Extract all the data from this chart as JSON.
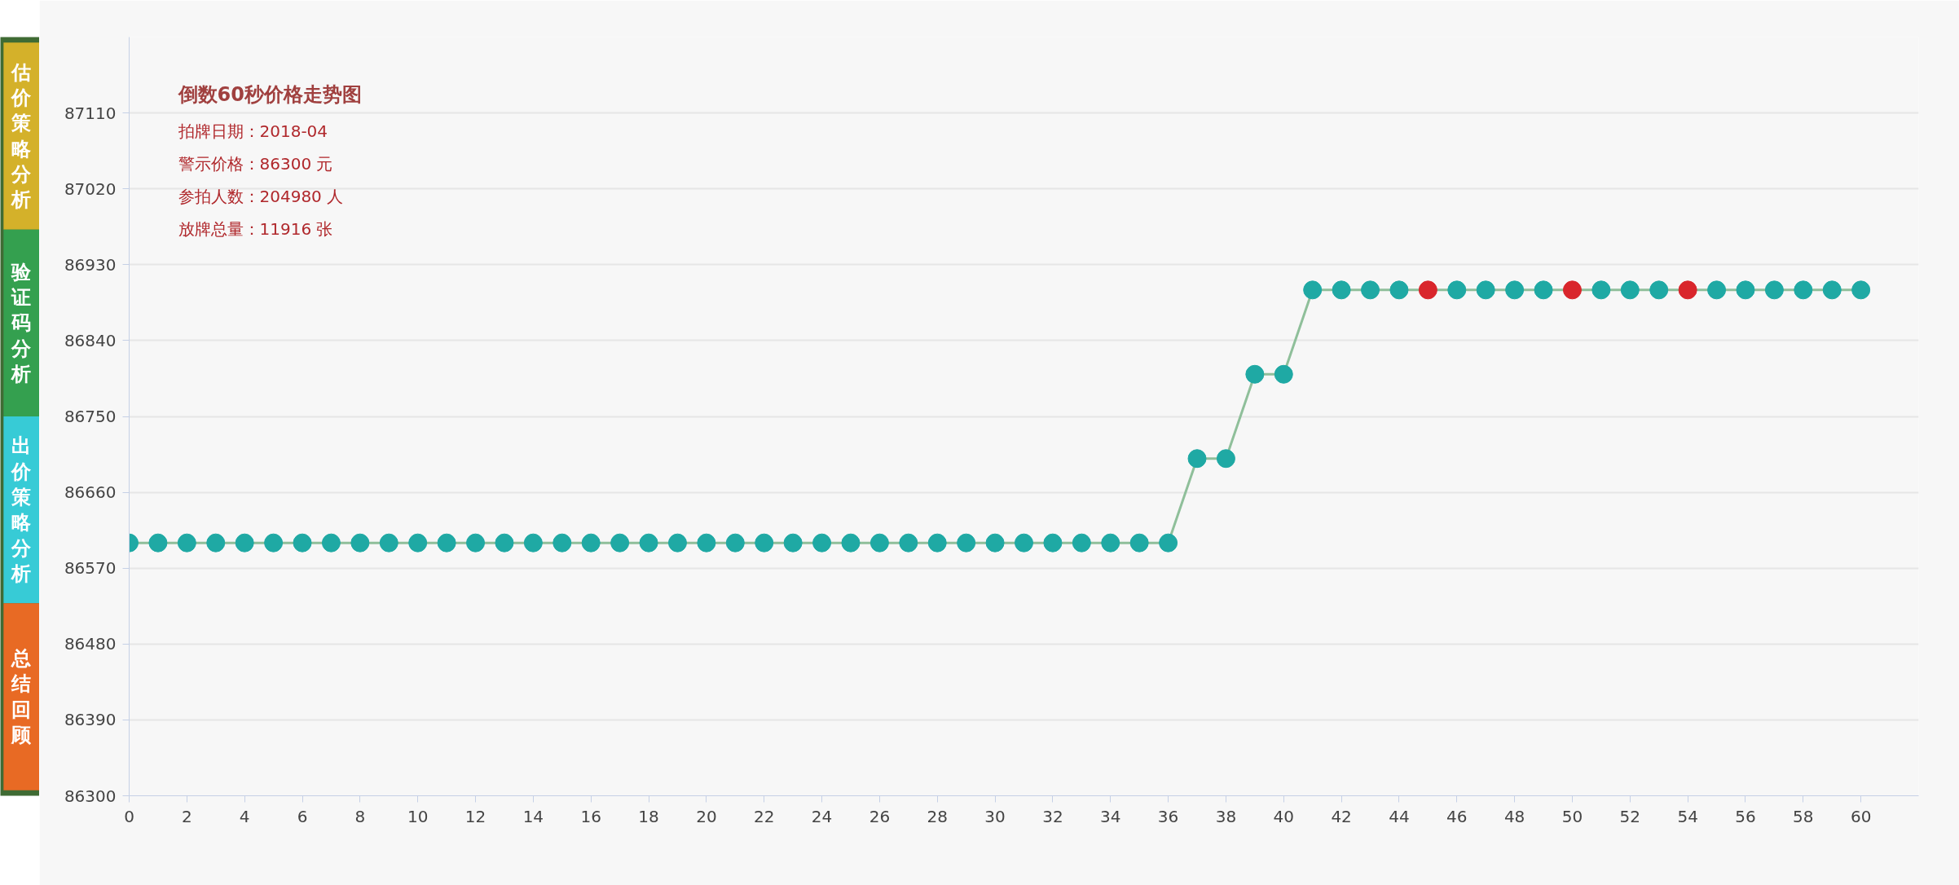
{
  "chart_data": {
    "type": "line",
    "title": "倒数60秒价格走势图",
    "annotations": [
      "拍牌日期：2018-04",
      "警示价格：86300 元",
      "参拍人数：204980 人",
      "放牌总量：11916 张",
      "估价策略分析",
      "验证码分析",
      "出价策略分析",
      "总结回顾"
    ],
    "x": [
      0,
      1,
      2,
      3,
      4,
      5,
      6,
      7,
      8,
      9,
      10,
      11,
      12,
      13,
      14,
      15,
      16,
      17,
      18,
      19,
      20,
      21,
      22,
      23,
      24,
      25,
      26,
      27,
      28,
      29,
      30,
      31,
      32,
      33,
      34,
      35,
      36,
      37,
      38,
      39,
      40,
      41,
      42,
      43,
      44,
      45,
      46,
      47,
      48,
      49,
      50,
      51,
      52,
      53,
      54,
      55,
      56,
      57,
      58,
      59,
      60
    ],
    "series": [
      {
        "color": "#8fbf9a",
        "colors": [
          "#1fa9a4",
          "#1fa9a4",
          "#1fa9a4",
          "#1fa9a4",
          "#1fa9a4",
          "#1fa9a4",
          "#1fa9a4",
          "#1fa9a4",
          "#1fa9a4",
          "#1fa9a4",
          "#1fa9a4",
          "#1fa9a4",
          "#1fa9a4",
          "#1fa9a4",
          "#1fa9a4",
          "#1fa9a4",
          "#1fa9a4",
          "#1fa9a4",
          "#1fa9a4",
          "#1fa9a4",
          "#1fa9a4",
          "#1fa9a4",
          "#1fa9a4",
          "#1fa9a4",
          "#1fa9a4",
          "#1fa9a4",
          "#1fa9a4",
          "#1fa9a4",
          "#1fa9a4",
          "#1fa9a4",
          "#1fa9a4",
          "#1fa9a4",
          "#1fa9a4",
          "#1fa9a4",
          "#1fa9a4",
          "#1fa9a4",
          "#1fa9a4",
          "#1fa9a4",
          "#1fa9a4",
          "#1fa9a4",
          "#1fa9a4",
          "#1fa9a4",
          "#1fa9a4",
          "#1fa9a4",
          "#1fa9a4",
          "#d9262c",
          "#1fa9a4",
          "#1fa9a4",
          "#1fa9a4",
          "#1fa9a4",
          "#d9262c",
          "#1fa9a4",
          "#1fa9a4",
          "#1fa9a4",
          "#d9262c",
          "#1fa9a4",
          "#1fa9a4",
          "#1fa9a4",
          "#1fa9a4",
          "#1fa9a4",
          "#1fa9a4"
        ],
        "values": [
          86600,
          86600,
          86600,
          86600,
          86600,
          86600,
          86600,
          86600,
          86600,
          86600,
          86600,
          86600,
          86600,
          86600,
          86600,
          86600,
          86600,
          86600,
          86600,
          86600,
          86600,
          86600,
          86600,
          86600,
          86600,
          86600,
          86600,
          86600,
          86600,
          86600,
          86600,
          86600,
          86600,
          86600,
          86600,
          86600,
          86600,
          86700,
          86700,
          86800,
          86800,
          86900,
          86900,
          86900,
          86900,
          86900,
          86900,
          86900,
          86900,
          86900,
          86900,
          86900,
          86900,
          86900,
          86900,
          86900,
          86900,
          86900,
          86900,
          86900,
          86900
        ]
      }
    ],
    "xlim": [
      0,
      62
    ],
    "ylim": [
      86300,
      87200
    ],
    "xticks": [
      0,
      2,
      4,
      6,
      8,
      10,
      12,
      14,
      16,
      18,
      20,
      22,
      24,
      26,
      28,
      30,
      32,
      34,
      36,
      38,
      40,
      42,
      44,
      46,
      48,
      50,
      52,
      54,
      56,
      58,
      60
    ],
    "yticks": [
      86300,
      86390,
      86480,
      86570,
      86660,
      86750,
      86840,
      86930,
      87020,
      87110
    ],
    "grid": "y",
    "marker": "circle",
    "line_style": "solid"
  }
}
